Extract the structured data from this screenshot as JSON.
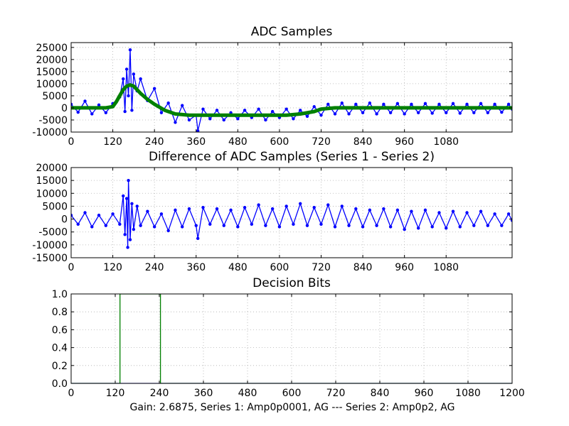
{
  "footer": "Gain: 2.6875, Series 1: Amp0p0001, AG --- Series 2: Amp0p2, AG",
  "colors": {
    "series1": "#0000ff",
    "series2": "#008000",
    "grid": "#b0b0b0"
  },
  "chart_data": [
    {
      "type": "line",
      "title": "ADC Samples",
      "xlabel": "",
      "ylabel": "",
      "xlim": [
        0,
        1270
      ],
      "ylim": [
        -10000,
        27000
      ],
      "grid": true,
      "xticks": [
        0,
        120,
        240,
        360,
        480,
        600,
        720,
        840,
        960,
        1080
      ],
      "yticks": [
        -10000,
        -5000,
        0,
        5000,
        10000,
        15000,
        20000,
        25000
      ],
      "series": [
        {
          "color": "#0000ff",
          "style": "line-with-markers",
          "x": [
            0,
            20,
            40,
            60,
            80,
            100,
            120,
            140,
            150,
            155,
            160,
            165,
            170,
            175,
            180,
            190,
            200,
            220,
            240,
            260,
            280,
            300,
            320,
            340,
            360,
            365,
            380,
            400,
            420,
            440,
            460,
            480,
            500,
            520,
            540,
            560,
            580,
            600,
            620,
            640,
            660,
            680,
            700,
            720,
            740,
            760,
            780,
            800,
            820,
            840,
            860,
            880,
            900,
            920,
            940,
            960,
            980,
            1000,
            1020,
            1040,
            1060,
            1080,
            1100,
            1120,
            1140,
            1160,
            1180,
            1200,
            1220,
            1240,
            1260,
            1270
          ],
          "y": [
            1500,
            -1800,
            2800,
            -2500,
            1200,
            -2000,
            1800,
            4500,
            12000,
            -1500,
            16000,
            5000,
            24000,
            -1000,
            14000,
            7000,
            12000,
            3000,
            8000,
            -2000,
            2000,
            -6000,
            1000,
            -5000,
            -3000,
            -9500,
            -500,
            -4500,
            -1000,
            -5000,
            -2000,
            -4500,
            -1000,
            -4000,
            -500,
            -5000,
            -1500,
            -4000,
            -500,
            -4500,
            -1000,
            -3500,
            500,
            -3000,
            1500,
            -2500,
            2000,
            -2500,
            1500,
            -2000,
            2000,
            -2500,
            1500,
            -2000,
            1800,
            -2500,
            1500,
            -2000,
            1800,
            -2200,
            1500,
            -2000,
            1800,
            -2200,
            1500,
            -2000,
            1800,
            -2000,
            1500,
            -1800,
            1500,
            -500
          ]
        },
        {
          "color": "#008000",
          "style": "thick-line",
          "x": [
            0,
            100,
            120,
            130,
            140,
            150,
            160,
            170,
            180,
            190,
            200,
            220,
            240,
            270,
            300,
            340,
            400,
            480,
            560,
            620,
            660,
            700,
            720,
            760,
            840,
            960,
            1080,
            1200,
            1270
          ],
          "y": [
            0,
            0,
            500,
            2500,
            5000,
            7500,
            9000,
            9500,
            9000,
            7500,
            6000,
            3500,
            1500,
            -1000,
            -2500,
            -3000,
            -3000,
            -3000,
            -3000,
            -3000,
            -2500,
            -1500,
            -500,
            0,
            0,
            0,
            0,
            0,
            0
          ]
        }
      ]
    },
    {
      "type": "line",
      "title": "Difference of ADC Samples (Series 1 - Series 2)",
      "xlabel": "",
      "ylabel": "",
      "xlim": [
        0,
        1270
      ],
      "ylim": [
        -15000,
        20000
      ],
      "grid": true,
      "xticks": [
        0,
        120,
        240,
        360,
        480,
        600,
        720,
        840,
        960,
        1080
      ],
      "yticks": [
        -15000,
        -10000,
        -5000,
        0,
        5000,
        10000,
        15000,
        20000
      ],
      "series": [
        {
          "color": "#0000ff",
          "style": "line-with-markers",
          "x": [
            0,
            20,
            40,
            60,
            80,
            100,
            120,
            140,
            150,
            155,
            160,
            163,
            165,
            170,
            175,
            180,
            190,
            200,
            220,
            240,
            260,
            280,
            300,
            320,
            340,
            360,
            365,
            380,
            400,
            420,
            440,
            460,
            480,
            500,
            520,
            540,
            560,
            580,
            600,
            620,
            640,
            660,
            680,
            700,
            720,
            740,
            760,
            780,
            800,
            820,
            840,
            860,
            880,
            900,
            920,
            940,
            960,
            980,
            1000,
            1020,
            1040,
            1060,
            1080,
            1100,
            1120,
            1140,
            1160,
            1180,
            1200,
            1220,
            1240,
            1260,
            1270
          ],
          "y": [
            1500,
            -2000,
            2500,
            -3000,
            1500,
            -2500,
            2000,
            -2000,
            9000,
            -6000,
            8000,
            -11000,
            15000,
            -8000,
            6000,
            -4000,
            5000,
            -2500,
            3000,
            -3000,
            2000,
            -4500,
            3500,
            -3000,
            4000,
            -2500,
            -7500,
            4500,
            -2000,
            4000,
            -2500,
            3500,
            -3000,
            4500,
            -2000,
            5500,
            -2500,
            4000,
            -3000,
            5000,
            -2000,
            6000,
            -2500,
            4500,
            -2000,
            5500,
            -3000,
            5000,
            -2500,
            4000,
            -3000,
            3500,
            -2500,
            4000,
            -3000,
            3500,
            -4000,
            3000,
            -3500,
            3500,
            -3000,
            2500,
            -3500,
            3000,
            -3000,
            2500,
            -2500,
            3000,
            -2500,
            2000,
            -2500,
            2000,
            -500
          ]
        }
      ]
    },
    {
      "type": "line",
      "title": "Decision Bits",
      "xlabel": "",
      "ylabel": "",
      "xlim": [
        0,
        1200
      ],
      "ylim": [
        0,
        1
      ],
      "grid": true,
      "xticks": [
        0,
        120,
        240,
        360,
        480,
        600,
        720,
        840,
        960,
        1080,
        1200
      ],
      "yticks": [
        0.0,
        0.2,
        0.4,
        0.6,
        0.8,
        1.0
      ],
      "ytick_labels": [
        "0.0",
        "0.2",
        "0.4",
        "0.6",
        "0.8",
        "1.0"
      ],
      "series": [
        {
          "color": "#0000ff",
          "style": "line",
          "x": [
            0,
            1200
          ],
          "y": [
            0,
            0
          ]
        },
        {
          "color": "#008000",
          "style": "line",
          "x": [
            0,
            133,
            133,
            243,
            243,
            1200
          ],
          "y": [
            0,
            0,
            1,
            1,
            0,
            0
          ]
        }
      ]
    }
  ]
}
